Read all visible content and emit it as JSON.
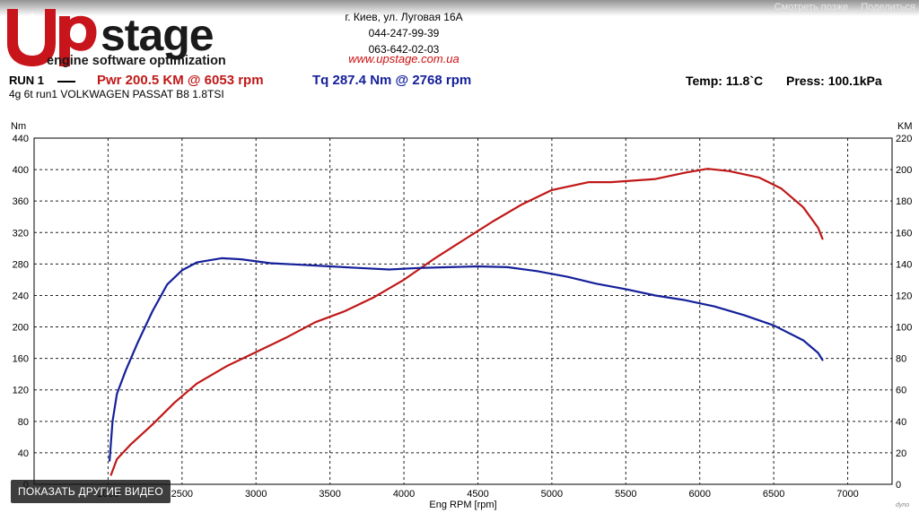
{
  "video": {
    "title": "",
    "more_later": "Смотреть позже",
    "share": "Поделиться",
    "other_videos": "ПОКАЗАТЬ ДРУГИЕ ВИДЕО"
  },
  "brand": {
    "logo_text": "stage",
    "tagline": "engine software optimization",
    "address": "г. Киев, ул. Луговая 16А",
    "phone1": "044-247-99-39",
    "phone2": "063-642-02-03",
    "url": "www.upstage.com.ua",
    "colors": {
      "red": "#c8141b",
      "dark": "#1a1a1a"
    }
  },
  "run": {
    "label": "RUN 1",
    "pwr": "Pwr  200.5 KM @ 6053 rpm",
    "tq": "Tq 287.4 Nm @ 2768 rpm",
    "subtitle": "4g 6t run1 VOLKWAGEN PASSAT B8 1.8TSI",
    "temp": "Temp: 11.8`C",
    "press": "Press: 100.1kPa"
  },
  "chart_data": {
    "type": "line",
    "xlabel": "Eng RPM [rpm]",
    "ylabel": "Nm",
    "y2label": "KM",
    "xlim": [
      1500,
      7300
    ],
    "ylim": [
      0,
      440
    ],
    "y2lim": [
      0,
      220
    ],
    "x_ticks": [
      2000,
      2500,
      3000,
      3500,
      4000,
      4500,
      5000,
      5500,
      6000,
      6500,
      7000
    ],
    "y_ticks": [
      0,
      40,
      80,
      120,
      160,
      200,
      240,
      280,
      320,
      360,
      400,
      440
    ],
    "y2_ticks": [
      0,
      20,
      40,
      60,
      80,
      100,
      120,
      140,
      160,
      180,
      200,
      220
    ],
    "grid": true,
    "series": [
      {
        "name": "Pwr",
        "axis": "right",
        "color": "#c01818",
        "x": [
          2020,
          2060,
          2150,
          2300,
          2450,
          2600,
          2800,
          3000,
          3200,
          3400,
          3600,
          3800,
          4000,
          4200,
          4400,
          4600,
          4800,
          5000,
          5250,
          5400,
          5700,
          5900,
          6053,
          6200,
          6400,
          6550,
          6700,
          6800,
          6830
        ],
        "values": [
          6,
          16,
          25,
          38,
          52,
          64,
          75,
          84,
          93,
          103,
          110,
          119,
          130,
          143,
          155,
          167,
          178,
          187,
          192,
          192,
          194,
          198,
          200.5,
          199,
          195,
          188,
          176,
          163,
          156
        ]
      },
      {
        "name": "Tq",
        "axis": "left",
        "color": "#15209a",
        "x": [
          2010,
          2030,
          2060,
          2120,
          2200,
          2300,
          2400,
          2500,
          2600,
          2768,
          2900,
          3100,
          3300,
          3500,
          3700,
          3900,
          4100,
          4300,
          4500,
          4700,
          4900,
          5100,
          5300,
          5500,
          5700,
          5900,
          6100,
          6300,
          6500,
          6700,
          6800,
          6830
        ],
        "values": [
          30,
          80,
          115,
          145,
          180,
          220,
          254,
          272,
          282,
          287.4,
          286,
          281,
          279,
          277,
          275,
          273,
          275,
          276,
          277,
          276,
          271,
          264,
          255,
          248,
          240,
          234,
          226,
          215,
          202,
          183,
          167,
          158
        ]
      }
    ]
  }
}
